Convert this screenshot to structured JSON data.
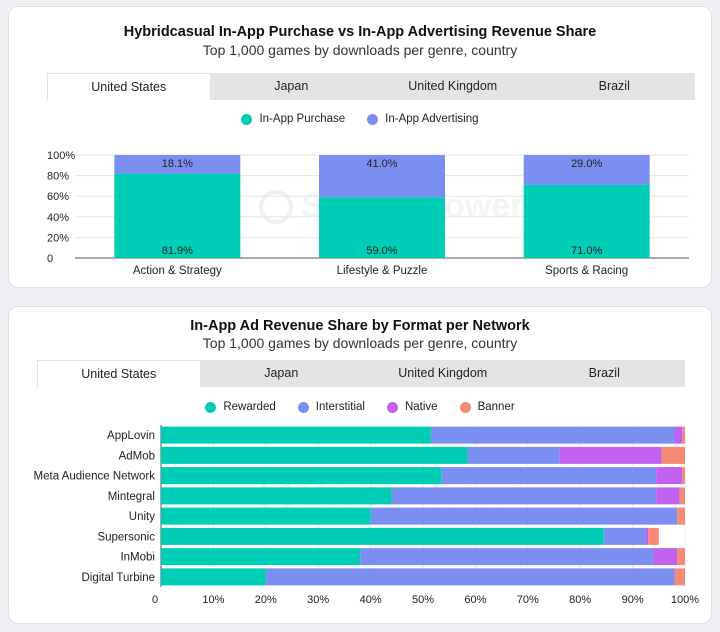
{
  "colors": {
    "in_app_purchase": "#00cdb5",
    "in_app_advertising": "#7b8ff0",
    "rewarded": "#00cdb5",
    "interstitial": "#7b8ff0",
    "native": "#c061f0",
    "banner": "#f58a76"
  },
  "watermark": {
    "text": "Sensor Tower",
    "icon": "sensor-tower-logo-icon"
  },
  "card1": {
    "title": "Hybridcasual In-App Purchase vs In-App Advertising Revenue Share",
    "subtitle": "Top 1,000 games by downloads per genre, country",
    "tabs": [
      "United States",
      "Japan",
      "United Kingdom",
      "Brazil"
    ],
    "active_tab": "United States",
    "legend": [
      "In-App Purchase",
      "In-App Advertising"
    ]
  },
  "card2": {
    "title": "In-App Ad Revenue Share by Format per Network",
    "subtitle": "Top 1,000 games by downloads per genre, country",
    "tabs": [
      "United States",
      "Japan",
      "United Kingdom",
      "Brazil"
    ],
    "active_tab": "United States",
    "legend": [
      "Rewarded",
      "Interstitial",
      "Native",
      "Banner"
    ]
  },
  "chart_data": [
    {
      "type": "bar",
      "stacked": true,
      "orientation": "vertical",
      "categories": [
        "Action & Strategy",
        "Lifestyle & Puzzle",
        "Sports & Racing"
      ],
      "series": [
        {
          "name": "In-App Purchase",
          "values": [
            81.9,
            59.0,
            71.0
          ],
          "labels": [
            "81.9%",
            "59.0%",
            "71.0%"
          ]
        },
        {
          "name": "In-App Advertising",
          "values": [
            18.1,
            41.0,
            29.0
          ],
          "labels": [
            "18.1%",
            "41.0%",
            "29.0%"
          ]
        }
      ],
      "y_ticks": [
        "0",
        "20%",
        "40%",
        "60%",
        "80%",
        "100%"
      ],
      "ylim": [
        0,
        100
      ],
      "grid": true,
      "legend_position": "top"
    },
    {
      "type": "bar",
      "stacked": true,
      "orientation": "horizontal",
      "categories": [
        "AppLovin",
        "AdMob",
        "Meta Audience Network",
        "Mintegral",
        "Unity",
        "Supersonic",
        "InMobi",
        "Digital Turbine"
      ],
      "series": [
        {
          "name": "Rewarded",
          "values": [
            51.5,
            58.5,
            53.5,
            44.0,
            40.0,
            84.5,
            38.0,
            20.0
          ]
        },
        {
          "name": "Interstitial",
          "values": [
            46.5,
            17.5,
            41.0,
            50.5,
            58.5,
            8.0,
            56.0,
            78.0
          ]
        },
        {
          "name": "Native",
          "values": [
            1.5,
            19.5,
            5.0,
            4.5,
            0.0,
            0.5,
            4.5,
            0.0
          ]
        },
        {
          "name": "Banner",
          "values": [
            0.5,
            4.5,
            0.5,
            1.0,
            1.5,
            2.0,
            1.5,
            2.0
          ]
        }
      ],
      "x_ticks": [
        "0",
        "10%",
        "20%",
        "30%",
        "40%",
        "50%",
        "60%",
        "70%",
        "80%",
        "90%",
        "100%"
      ],
      "xlim": [
        0,
        100
      ],
      "grid": true,
      "legend_position": "top"
    }
  ]
}
